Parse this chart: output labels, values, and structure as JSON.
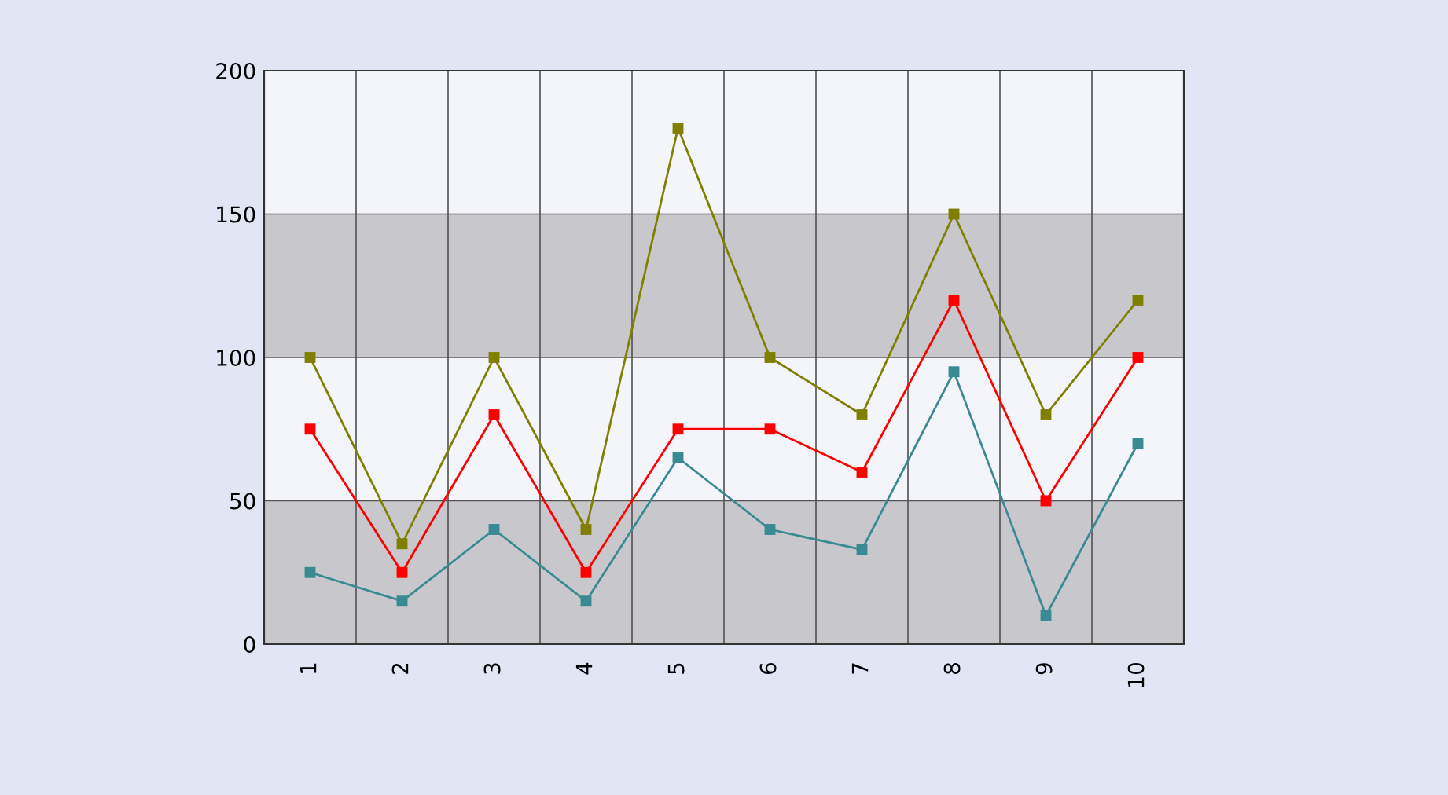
{
  "chart_data": {
    "type": "line",
    "categories": [
      "1",
      "2",
      "3",
      "4",
      "5",
      "6",
      "7",
      "8",
      "9",
      "10"
    ],
    "series": [
      {
        "color": "#808000",
        "values": [
          100,
          35,
          100,
          40,
          180,
          100,
          80,
          150,
          80,
          120
        ]
      },
      {
        "color": "#ff0000",
        "values": [
          75,
          25,
          80,
          25,
          75,
          75,
          60,
          120,
          50,
          100
        ]
      },
      {
        "color": "#3a8a94",
        "values": [
          25,
          15,
          40,
          15,
          65,
          40,
          33,
          95,
          10,
          70
        ]
      }
    ],
    "ylim": [
      0,
      200
    ],
    "yticks": [
      0,
      50,
      100,
      150,
      200
    ],
    "grid": true,
    "marker": "square",
    "line_style": "solid",
    "bands": [
      {
        "axis": "y",
        "from": 0,
        "to": 50,
        "color": "#c8c8cc"
      },
      {
        "axis": "y",
        "from": 100,
        "to": 150,
        "color": "#c8c8cc"
      }
    ]
  }
}
